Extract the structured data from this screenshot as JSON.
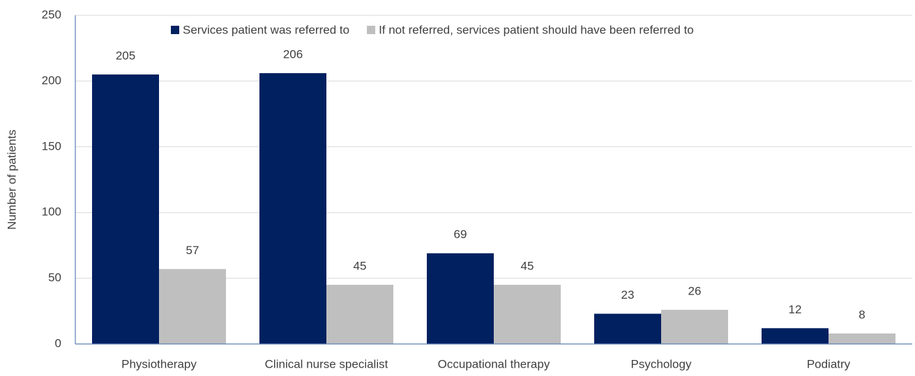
{
  "chart_data": {
    "type": "bar",
    "y_label": "Number of patients",
    "categories": [
      "Physiotherapy",
      "Clinical nurse specialist",
      "Occupational therapy",
      "Psychology",
      "Podiatry"
    ],
    "series": [
      {
        "name": "Services patient was referred to",
        "color": "#002060",
        "values": [
          205,
          206,
          69,
          23,
          12
        ]
      },
      {
        "name": "If not referred, services patient should have been referred to",
        "color": "#bfbfbf",
        "values": [
          57,
          45,
          45,
          26,
          8
        ]
      }
    ],
    "ylim": [
      0,
      250
    ],
    "yticks": [
      0,
      50,
      100,
      150,
      200,
      250
    ],
    "grid": true,
    "legend": "top"
  }
}
